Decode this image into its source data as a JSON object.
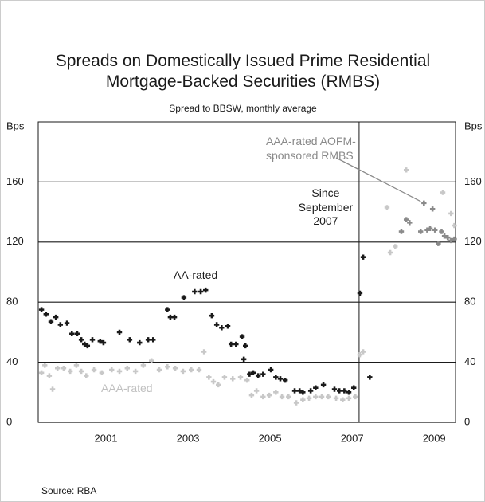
{
  "chart_data": {
    "type": "scatter",
    "title": "Spreads on Domestically Issued Prime Residential Mortgage-Backed Securities (RMBS)",
    "subtitle": "Spread to BBSW, monthly average",
    "y_label": "Bps",
    "source": "Source: RBA",
    "xlim": [
      1999.85,
      2010.02
    ],
    "xticks": [
      {
        "value": 2001.5,
        "label": "2001"
      },
      {
        "value": 2003.5,
        "label": "2003"
      },
      {
        "value": 2005.5,
        "label": "2005"
      },
      {
        "value": 2007.5,
        "label": "2007"
      },
      {
        "value": 2009.5,
        "label": "2009"
      }
    ],
    "ylim": [
      0,
      200
    ],
    "yticks": [
      0,
      40,
      80,
      120,
      160
    ],
    "grid": true,
    "divider_x": 2007.67,
    "annotations": [
      {
        "text": "Since September 2007"
      }
    ],
    "series": [
      {
        "name": "AA-rated",
        "color": "#1a1a1a",
        "x": [
          1999.93,
          2000.04,
          2000.16,
          2000.28,
          2000.39,
          2000.55,
          2000.67,
          2000.8,
          2000.9,
          2000.98,
          2001.05,
          2001.17,
          2001.36,
          2001.44,
          2001.83,
          2002.08,
          2002.32,
          2002.53,
          2002.65,
          2003.0,
          2003.07,
          2003.17,
          2003.4,
          2003.66,
          2003.81,
          2003.93,
          2004.08,
          2004.2,
          2004.32,
          2004.47,
          2004.55,
          2004.67,
          2004.82,
          2004.86,
          2004.9,
          2005.0,
          2005.09,
          2005.21,
          2005.33,
          2005.52,
          2005.64,
          2005.75,
          2005.87,
          2006.1,
          2006.22,
          2006.3,
          2006.49,
          2006.61,
          2006.8,
          2007.07,
          2007.19,
          2007.31,
          2007.42,
          2007.54,
          2007.69,
          2007.77,
          2007.93
        ],
        "values": [
          75,
          72,
          67,
          70,
          65,
          66,
          59,
          59,
          55,
          52,
          51,
          55,
          54,
          53,
          60,
          55,
          53,
          55,
          55,
          75,
          70,
          70,
          83,
          87,
          87,
          88,
          71,
          65,
          63,
          64,
          52,
          52,
          57,
          42,
          51,
          32,
          33,
          31,
          32,
          35,
          30,
          29,
          28,
          21,
          21,
          20,
          21,
          23,
          25,
          22,
          21,
          21,
          20,
          23,
          86,
          110,
          30
        ]
      },
      {
        "name": "AAA-rated",
        "color": "#c8c8c8",
        "x": [
          1999.93,
          2000.01,
          2000.12,
          2000.2,
          2000.32,
          2000.47,
          2000.63,
          2000.78,
          2000.9,
          2001.02,
          2001.21,
          2001.4,
          2001.64,
          2001.83,
          2002.02,
          2002.22,
          2002.41,
          2002.61,
          2002.8,
          2003.0,
          2003.19,
          2003.38,
          2003.58,
          2003.77,
          2003.89,
          2004.01,
          2004.12,
          2004.24,
          2004.39,
          2004.59,
          2004.78,
          2004.94,
          2005.05,
          2005.17,
          2005.33,
          2005.48,
          2005.64,
          2005.79,
          2005.95,
          2006.14,
          2006.3,
          2006.45,
          2006.61,
          2006.76,
          2006.92,
          2007.11,
          2007.27,
          2007.42,
          2007.58,
          2007.69,
          2007.77,
          2008.35,
          2008.43,
          2008.55,
          2008.82,
          2009.71,
          2009.91,
          2009.99
        ],
        "values": [
          33,
          38,
          31,
          22,
          36,
          36,
          34,
          38,
          34,
          31,
          35,
          33,
          35,
          34,
          36,
          34,
          38,
          41,
          35,
          37,
          36,
          34,
          35,
          35,
          47,
          30,
          27,
          25,
          30,
          29,
          30,
          28,
          18,
          21,
          17,
          18,
          20,
          17,
          17,
          13,
          15,
          16,
          17,
          17,
          17,
          16,
          15,
          16,
          17,
          45,
          47,
          143,
          113,
          117,
          168,
          153,
          139,
          131
        ]
      },
      {
        "name": "AAA-rated AOFM-sponsored RMBS",
        "color": "#8a8a8a",
        "x": [
          2008.7,
          2008.82,
          2008.9,
          2009.17,
          2009.25,
          2009.33,
          2009.4,
          2009.46,
          2009.52,
          2009.6,
          2009.68,
          2009.75,
          2009.83,
          2009.91,
          2009.99
        ],
        "values": [
          127,
          135,
          133,
          127,
          146,
          128,
          129,
          142,
          128,
          119,
          127,
          124,
          123,
          121,
          122
        ]
      }
    ]
  }
}
